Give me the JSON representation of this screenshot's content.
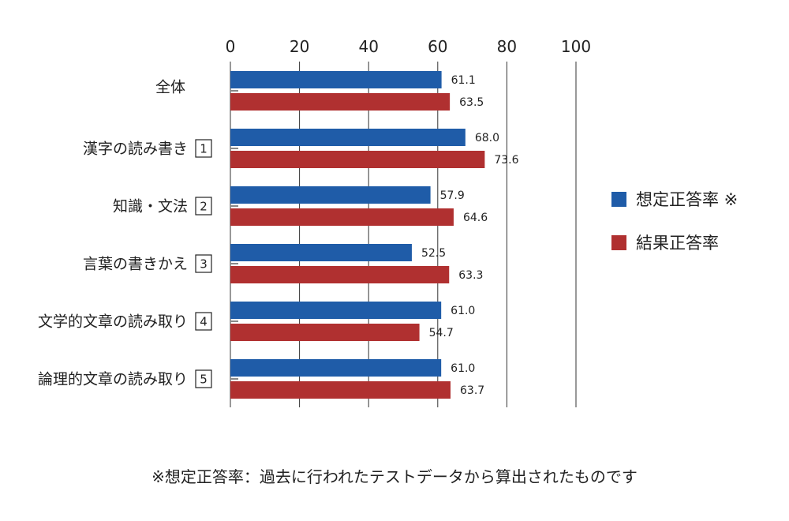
{
  "chart_data": {
    "type": "bar",
    "orientation": "horizontal",
    "categories": [
      {
        "label": "全体",
        "number": ""
      },
      {
        "label": "漢字の読み書き",
        "number": "1"
      },
      {
        "label": "知識・文法",
        "number": "2"
      },
      {
        "label": "言葉の書きかえ",
        "number": "3"
      },
      {
        "label": "文学的文章の読み取り",
        "number": "4"
      },
      {
        "label": "論理的文章の読み取り",
        "number": "5"
      }
    ],
    "series": [
      {
        "name": "想定正答率 ※",
        "color": "#1f5ca8",
        "values": [
          61.1,
          68.0,
          57.9,
          52.5,
          61.0,
          61.0
        ]
      },
      {
        "name": "結果正答率",
        "color": "#b03030",
        "values": [
          63.5,
          73.6,
          64.6,
          63.3,
          54.7,
          63.7
        ]
      }
    ],
    "xlim": [
      0,
      100
    ],
    "xticks": [
      0,
      20,
      40,
      60,
      80,
      100
    ],
    "grid": true,
    "legend_position": "right"
  },
  "footnote": "※想定正答率：過去に行われたテストデータから算出されたものです"
}
